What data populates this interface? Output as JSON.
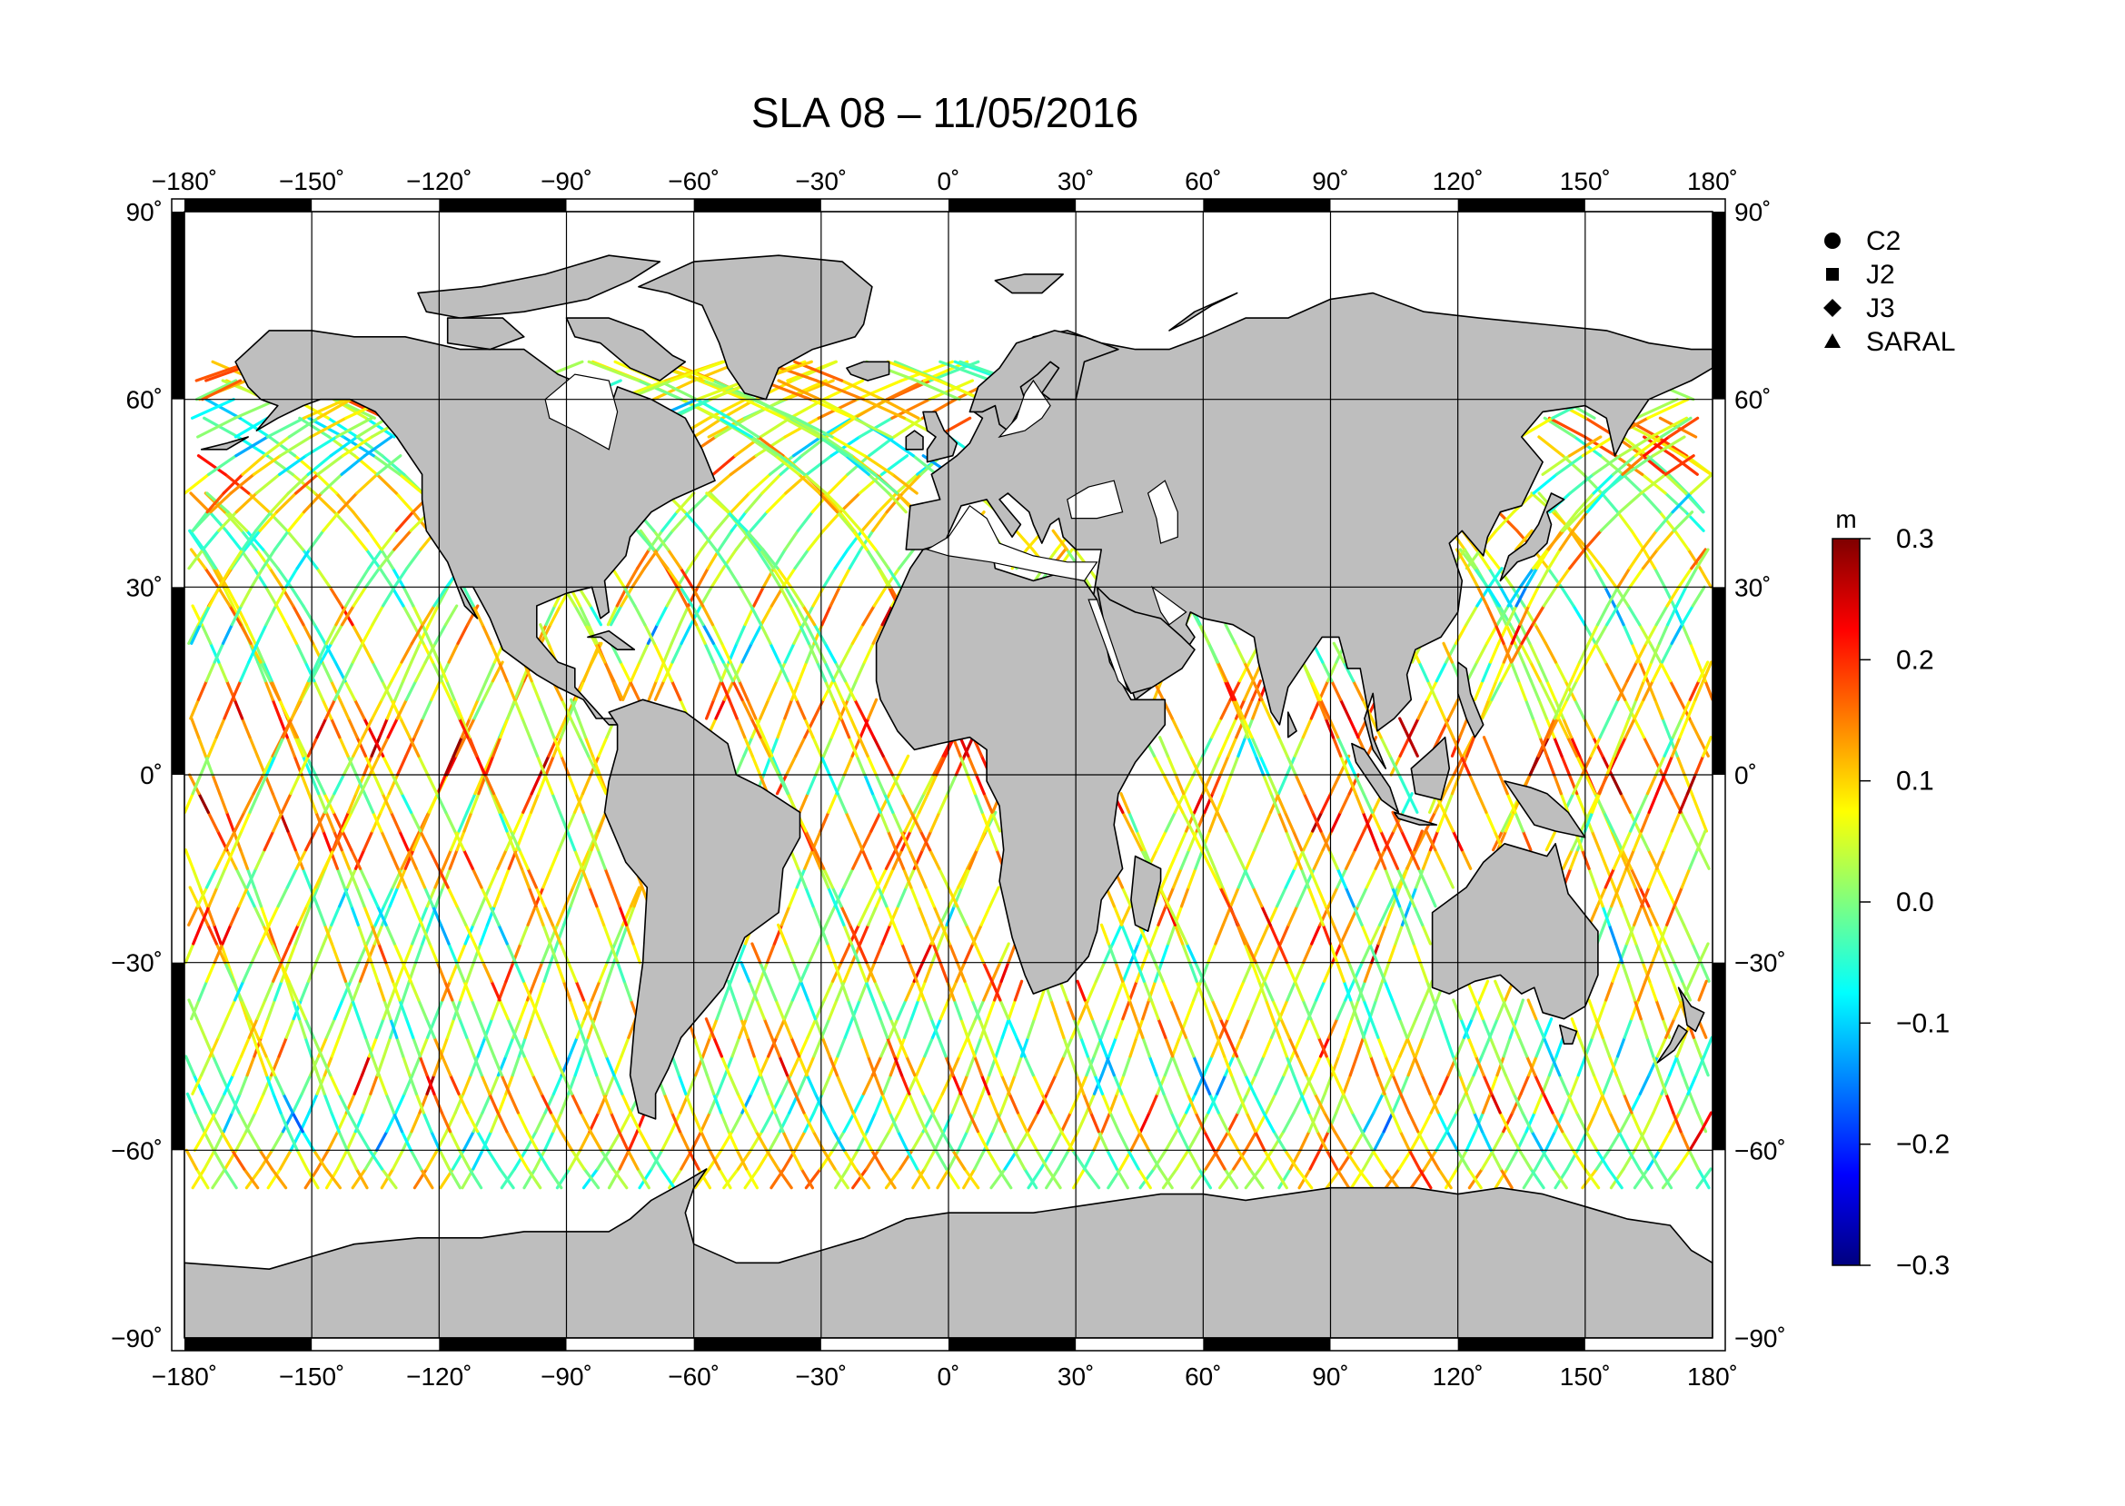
{
  "title": "SLA 08 – 11/05/2016",
  "axes": {
    "lon_ticks": [
      {
        "value": -180,
        "label": "−180˚"
      },
      {
        "value": -150,
        "label": "−150˚"
      },
      {
        "value": -120,
        "label": "−120˚"
      },
      {
        "value": -90,
        "label": "−90˚"
      },
      {
        "value": -60,
        "label": "−60˚"
      },
      {
        "value": -30,
        "label": "−30˚"
      },
      {
        "value": 0,
        "label": "0˚"
      },
      {
        "value": 30,
        "label": "30˚"
      },
      {
        "value": 60,
        "label": "60˚"
      },
      {
        "value": 90,
        "label": "90˚"
      },
      {
        "value": 120,
        "label": "120˚"
      },
      {
        "value": 150,
        "label": "150˚"
      },
      {
        "value": 180,
        "label": "180˚"
      }
    ],
    "lat_ticks": [
      {
        "value": 90,
        "label": "90˚"
      },
      {
        "value": 60,
        "label": "60˚"
      },
      {
        "value": 30,
        "label": "30˚"
      },
      {
        "value": 0,
        "label": "0˚"
      },
      {
        "value": -30,
        "label": "−30˚"
      },
      {
        "value": -60,
        "label": "−60˚"
      },
      {
        "value": -90,
        "label": "−90˚"
      }
    ],
    "lon_range": [
      -180,
      180
    ],
    "lat_range": [
      -90,
      90
    ],
    "grid": true
  },
  "legend": {
    "position": "right",
    "items": [
      {
        "label": "C2",
        "symbol": "circle"
      },
      {
        "label": "J2",
        "symbol": "square"
      },
      {
        "label": "J3",
        "symbol": "diamond"
      },
      {
        "label": "SARAL",
        "symbol": "triangle"
      }
    ]
  },
  "colorbar": {
    "unit": "m",
    "ticks": [
      {
        "value": 0.3,
        "label": "0.3"
      },
      {
        "value": 0.2,
        "label": "0.2"
      },
      {
        "value": 0.1,
        "label": "0.1"
      },
      {
        "value": 0.0,
        "label": "0.0"
      },
      {
        "value": -0.1,
        "label": "−0.1"
      },
      {
        "value": -0.2,
        "label": "−0.2"
      },
      {
        "value": -0.3,
        "label": "−0.3"
      }
    ],
    "range": [
      -0.3,
      0.3
    ],
    "colors": [
      "#00007f",
      "#0000ff",
      "#007fff",
      "#00ffff",
      "#7fff7f",
      "#ffff00",
      "#ff7f00",
      "#ff0000",
      "#7f0000"
    ]
  },
  "colors": {
    "land": "#bebebe",
    "ocean": "#ffffff",
    "frame": "#000000",
    "grid": "#000000"
  }
}
